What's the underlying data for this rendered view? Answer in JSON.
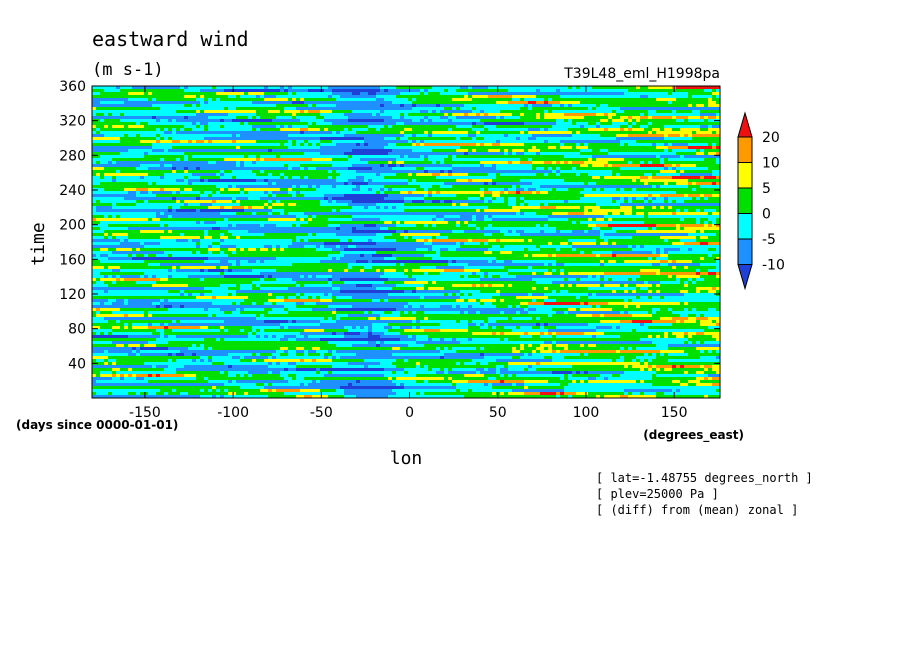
{
  "chart_data": {
    "type": "heatmap",
    "title": "eastward wind",
    "units": "(m s-1)",
    "dataset": "T39L48_eml_H1998pa",
    "xlabel": "lon",
    "x_units": "(degrees_east)",
    "ylabel": "time",
    "y_units": "(days since 0000-01-01)",
    "xlim": [
      -180,
      176
    ],
    "ylim": [
      0,
      360
    ],
    "x_ticks": [
      -150,
      -100,
      -50,
      0,
      50,
      100,
      150
    ],
    "y_ticks": [
      40,
      80,
      120,
      160,
      200,
      240,
      280,
      320,
      360
    ],
    "colorbar": {
      "levels": [
        -10,
        -5,
        0,
        5,
        10,
        20
      ],
      "labels": [
        "20",
        "10",
        "5",
        "0",
        "-5",
        "-10"
      ],
      "colors": [
        "#1f3fd6",
        "#1e90ff",
        "#00ffff",
        "#00e000",
        "#ffff00",
        "#ff9900",
        "#ee1111"
      ]
    },
    "annotations": [
      "[ lat=-1.48755 degrees_north ]",
      "[ plev=25000 Pa ]",
      "[ (diff) from (mean) zonal ]"
    ]
  }
}
